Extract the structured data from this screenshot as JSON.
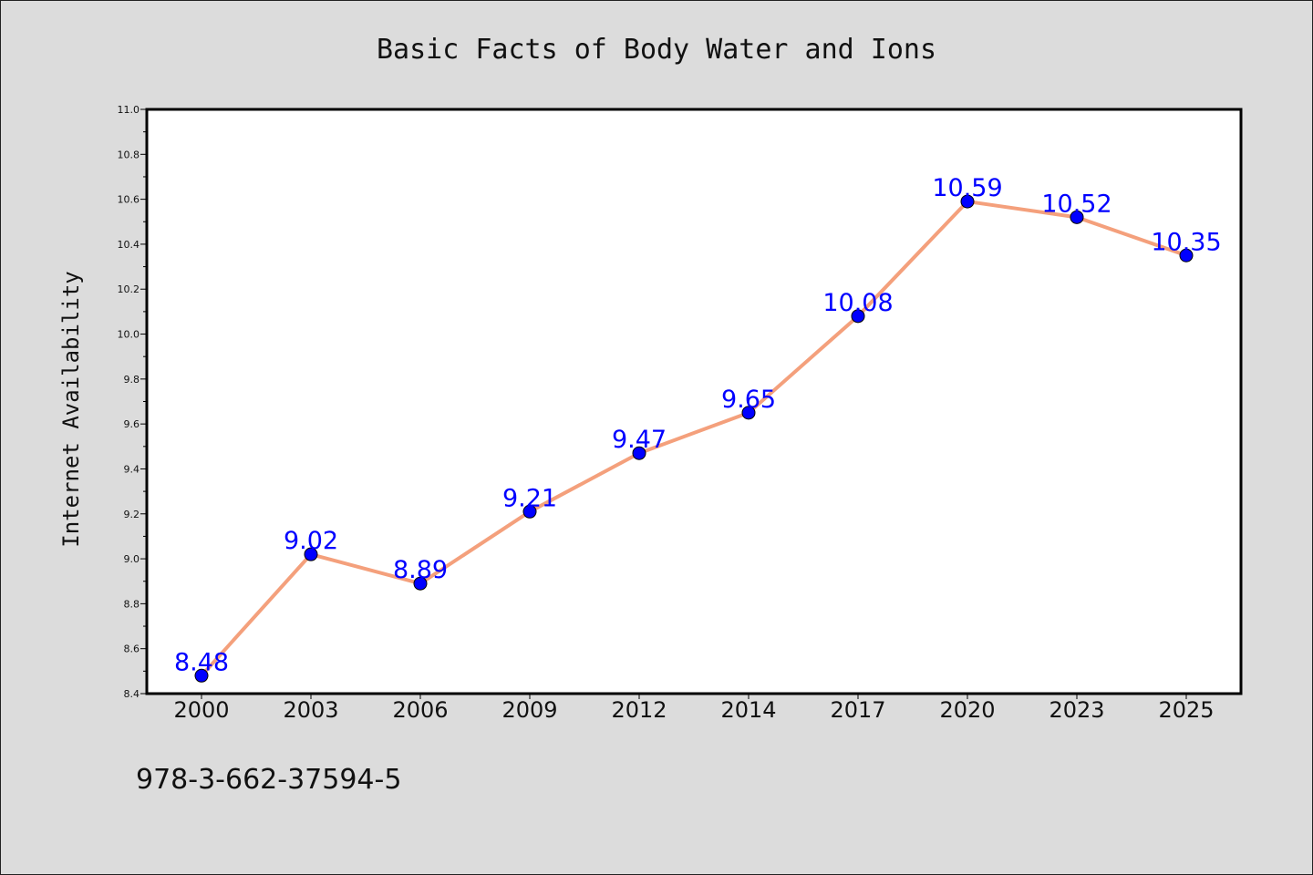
{
  "chart_data": {
    "type": "line",
    "title": "Basic Facts of Body Water and Ions",
    "xlabel": "",
    "ylabel": "Internet Availability",
    "categories": [
      "2000",
      "2003",
      "2006",
      "2009",
      "2012",
      "2014",
      "2017",
      "2020",
      "2023",
      "2025"
    ],
    "series": [
      {
        "values": [
          8.48,
          9.02,
          8.89,
          9.21,
          9.47,
          9.65,
          10.08,
          10.59,
          10.52,
          10.35
        ],
        "labels": [
          "8.48",
          "9.02",
          "8.89",
          "9.21",
          "9.47",
          "9.65",
          "10.08",
          "10.59",
          "10.52",
          "10.35"
        ],
        "line_color": "#f4a07c",
        "marker_color": "#0000ff"
      }
    ],
    "ylim": [
      8.4,
      11.0
    ],
    "yticks": [
      "8.4",
      "8.6",
      "8.8",
      "9.0",
      "9.2",
      "9.4",
      "9.6",
      "9.8",
      "10.0",
      "10.2",
      "10.4",
      "10.6",
      "10.8",
      "11.0"
    ],
    "grid": false,
    "legend": "none"
  },
  "footer": {
    "code": "978-3-662-37594-5"
  }
}
